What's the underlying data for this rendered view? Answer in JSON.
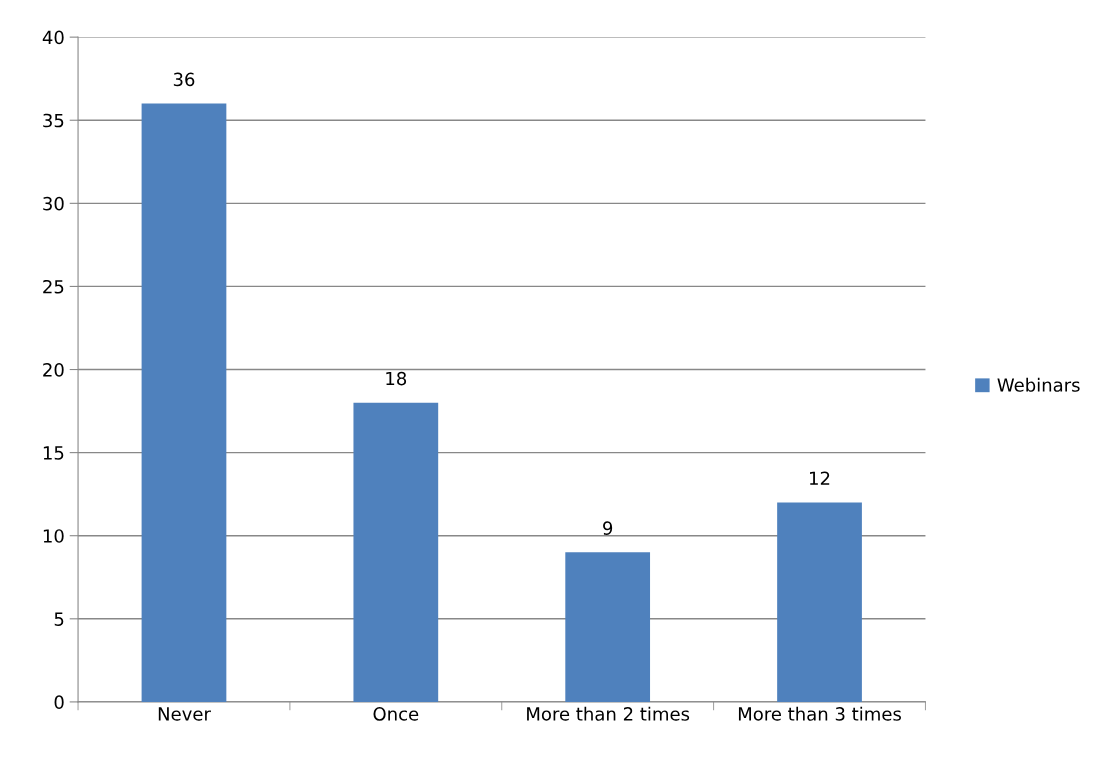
{
  "chart_data": {
    "type": "bar",
    "categories": [
      "Never",
      "Once",
      "More than 2 times",
      "More than 3 times"
    ],
    "series": [
      {
        "name": "Webinars",
        "color": "#4f81bd",
        "values": [
          36,
          18,
          9,
          12
        ]
      }
    ],
    "ylim": [
      0,
      40
    ],
    "yticks": [
      0,
      5,
      10,
      15,
      20,
      25,
      30,
      35,
      40
    ],
    "grid": "y",
    "legend": "right",
    "data_labels": true
  }
}
